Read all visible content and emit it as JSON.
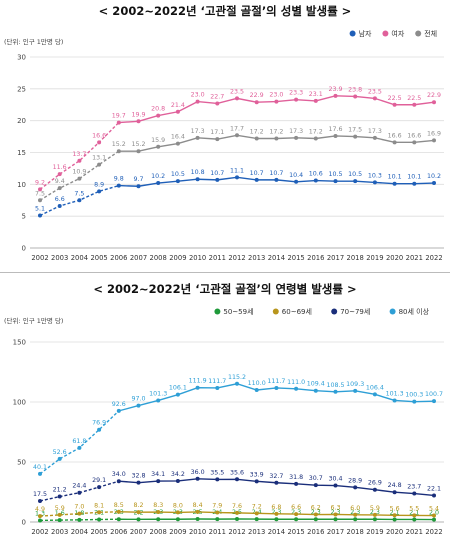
{
  "chart_data": [
    {
      "type": "line",
      "title": "< 2002~2022년 ‘고관절 골절’의 성별 발생률 >",
      "unit_label": "(단위: 인구 1만명 당)",
      "x": [
        "2002",
        "2003",
        "2004",
        "2005",
        "2006",
        "2007",
        "2008",
        "2009",
        "2010",
        "2011",
        "2012",
        "2013",
        "2014",
        "2015",
        "2016",
        "2017",
        "2018",
        "2019",
        "2020",
        "2021",
        "2022"
      ],
      "ylim": [
        0,
        30
      ],
      "yticks": [
        0,
        5,
        10,
        15,
        20,
        25,
        30
      ],
      "grid": true,
      "legend_position": "top-right",
      "series": [
        {
          "name": "남자",
          "color": "#1f5fb8",
          "label_position": "above",
          "values": [
            5.1,
            6.6,
            7.5,
            8.9,
            9.8,
            9.7,
            10.2,
            10.5,
            10.8,
            10.7,
            11.1,
            10.7,
            10.7,
            10.4,
            10.6,
            10.5,
            10.5,
            10.3,
            10.1,
            10.1,
            10.2
          ]
        },
        {
          "name": "여자",
          "color": "#e0609a",
          "label_position": "above",
          "values": [
            9.2,
            11.6,
            13.7,
            16.6,
            19.7,
            19.9,
            20.8,
            21.4,
            23.0,
            22.7,
            23.5,
            22.9,
            23.0,
            23.3,
            23.1,
            23.9,
            23.8,
            23.5,
            22.5,
            22.5,
            22.9
          ]
        },
        {
          "name": "전체",
          "color": "#8c8c8c",
          "label_position": "above",
          "values": [
            7.5,
            9.4,
            10.9,
            13.1,
            15.2,
            15.2,
            15.9,
            16.4,
            17.3,
            17.1,
            17.7,
            17.2,
            17.2,
            17.3,
            17.2,
            17.6,
            17.5,
            17.3,
            16.6,
            16.6,
            16.9
          ]
        }
      ]
    },
    {
      "type": "line",
      "title": "< 2002~2022년 ‘고관절 골절’의 연령별 발생률 >",
      "unit_label": "(단위: 인구 1만명 당)",
      "x": [
        "2002",
        "2003",
        "2004",
        "2005",
        "2006",
        "2007",
        "2008",
        "2009",
        "2010",
        "2011",
        "2012",
        "2013",
        "2014",
        "2015",
        "2016",
        "2017",
        "2018",
        "2019",
        "2020",
        "2021",
        "2022"
      ],
      "ylim": [
        0,
        150
      ],
      "yticks": [
        0,
        50,
        100,
        150
      ],
      "grid": true,
      "legend_position": "top-right",
      "series": [
        {
          "name": "50~59세",
          "color": "#1f9a3a",
          "label_position": "above",
          "values": [
            1.3,
            1.6,
            1.8,
            2.1,
            2.3,
            2.2,
            2.3,
            2.3,
            2.5,
            2.4,
            2.5,
            2.4,
            2.3,
            2.3,
            2.3,
            2.3,
            2.3,
            2.3,
            2.1,
            2.1,
            2.0
          ]
        },
        {
          "name": "60~69세",
          "color": "#b8951c",
          "label_position": "above",
          "values": [
            4.9,
            5.9,
            7.0,
            8.1,
            8.5,
            8.2,
            8.3,
            8.0,
            8.4,
            7.9,
            7.6,
            7.2,
            6.8,
            6.6,
            6.2,
            6.3,
            6.0,
            5.9,
            5.6,
            5.5,
            5.4
          ]
        },
        {
          "name": "70~79세",
          "color": "#1a2e7a",
          "label_position": "above",
          "values": [
            17.5,
            21.2,
            24.4,
            29.1,
            34.0,
            32.8,
            34.1,
            34.2,
            36.0,
            35.5,
            35.6,
            33.9,
            32.7,
            31.8,
            30.7,
            30.4,
            28.9,
            26.9,
            24.8,
            23.7,
            22.1
          ]
        },
        {
          "name": "80세 이상",
          "color": "#2e9fd6",
          "label_position": "above",
          "values": [
            40.1,
            52.6,
            61.8,
            76.9,
            92.6,
            97.0,
            101.3,
            106.1,
            111.9,
            111.7,
            115.2,
            110.0,
            111.7,
            111.0,
            109.4,
            108.5,
            109.3,
            106.4,
            101.3,
            100.3,
            100.7
          ]
        }
      ]
    }
  ]
}
